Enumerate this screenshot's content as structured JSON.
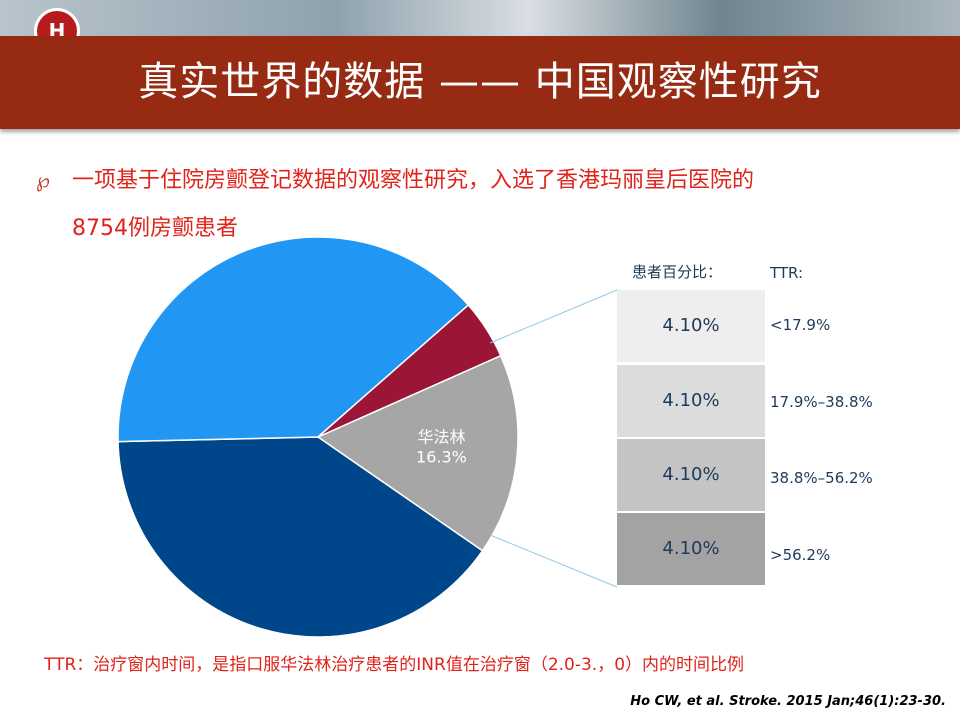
{
  "header": {
    "title": "真实世界的数据 —— 中国观察性研究"
  },
  "bullet": {
    "line1": "一项基于住院房颤登记数据的观察性研究，入选了香港玛丽皇后医院的",
    "line2": "8754例房颤患者"
  },
  "table": {
    "percent_header": "患者百分比：",
    "ttr_header": "TTR:",
    "rows": [
      {
        "percent": "4.10%",
        "ttr": "<17.9%",
        "color": "#eeeeee"
      },
      {
        "percent": "4.10%",
        "ttr": "17.9%–38.8%",
        "color": "#dcdcdc"
      },
      {
        "percent": "4.10%",
        "ttr": "38.8%–56.2%",
        "color": "#c4c4c4"
      },
      {
        "percent": "4.10%",
        "ttr": ">56.2%",
        "color": "#a3a3a3"
      }
    ]
  },
  "footnote": "TTR：治疗窗内时间，是指口服华法林治疗患者的INR值在治疗窗（2.0-3.，0）内的时间比例",
  "citation": "Ho CW, et al. Stroke. 2015 Jan;46(1):23-30.",
  "chart_data": {
    "type": "pie",
    "slices": [
      {
        "label": "华法林",
        "value": 16.3,
        "value_label": "16.3%",
        "color": "#a6a6a6",
        "show_label": true
      },
      {
        "label": "",
        "value": 40.0,
        "color": "#00468b",
        "show_label": false
      },
      {
        "label": "",
        "value": 38.9,
        "color": "#2196f3",
        "show_label": false
      },
      {
        "label": "",
        "value": 4.8,
        "color": "#9b1536",
        "show_label": false
      }
    ]
  }
}
